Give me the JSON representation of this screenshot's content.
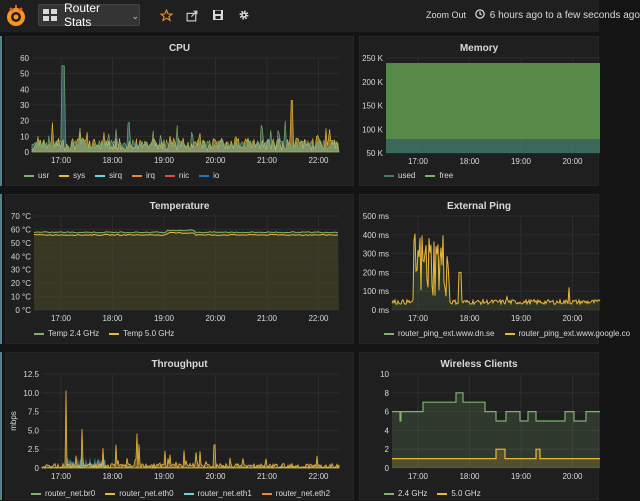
{
  "topbar": {
    "dashboard_title": "Router Stats",
    "caret": "⌄",
    "zoom_out": "Zoom Out",
    "time_range": "6 hours ago to a few seconds ago",
    "clock_icon": "clock-icon",
    "star_icon": "star-icon",
    "share_icon": "share-icon",
    "save_icon": "save-icon",
    "settings_icon": "gear-icon",
    "grid_icon": "grid-icon"
  },
  "panels": {
    "cpu": {
      "title": "CPU",
      "y_ticks": [
        "60",
        "50",
        "40",
        "30",
        "20",
        "10",
        "0"
      ],
      "x_ticks": [
        "17:00",
        "18:00",
        "19:00",
        "20:00",
        "21:00",
        "22:00"
      ],
      "legend": [
        {
          "label": "usr",
          "color": "#7eb26d"
        },
        {
          "label": "sys",
          "color": "#eab839"
        },
        {
          "label": "sirq",
          "color": "#6ed0e0"
        },
        {
          "label": "irq",
          "color": "#ef843c"
        },
        {
          "label": "nic",
          "color": "#e24d42"
        },
        {
          "label": "io",
          "color": "#1f78c1"
        }
      ]
    },
    "memory": {
      "title": "Memory",
      "y_ticks": [
        "250 K",
        "200 K",
        "150 K",
        "100 K",
        "50 K"
      ],
      "x_ticks": [
        "17:00",
        "18:00",
        "19:00",
        "20:00"
      ],
      "legend": [
        {
          "label": "used",
          "color": "#447a6c"
        },
        {
          "label": "free",
          "color": "#7eb26d"
        }
      ]
    },
    "temperature": {
      "title": "Temperature",
      "y_ticks": [
        "70 °C",
        "60 °C",
        "50 °C",
        "40 °C",
        "30 °C",
        "20 °C",
        "10 °C",
        "0 °C"
      ],
      "x_ticks": [
        "17:00",
        "18:00",
        "19:00",
        "20:00",
        "21:00",
        "22:00"
      ],
      "legend": [
        {
          "label": "Temp 2.4 GHz",
          "color": "#7eb26d"
        },
        {
          "label": "Temp 5.0 GHz",
          "color": "#eab839"
        }
      ]
    },
    "ping": {
      "title": "External Ping",
      "y_ticks": [
        "500 ms",
        "400 ms",
        "300 ms",
        "200 ms",
        "100 ms",
        "0 ms"
      ],
      "x_ticks": [
        "17:00",
        "18:00",
        "19:00",
        "20:00"
      ],
      "legend": [
        {
          "label": "router_ping_ext.www.dn.se",
          "color": "#7eb26d"
        },
        {
          "label": "router_ping_ext.www.google.co",
          "color": "#eab839"
        }
      ]
    },
    "throughput": {
      "title": "Throughput",
      "y_label": "mbps",
      "y_ticks": [
        "12.5",
        "10.0",
        "7.5",
        "5.0",
        "2.5",
        "0"
      ],
      "x_ticks": [
        "17:00",
        "18:00",
        "19:00",
        "20:00",
        "21:00",
        "22:00"
      ],
      "legend": [
        {
          "label": "router_net.br0",
          "color": "#7eb26d"
        },
        {
          "label": "router_net.eth0",
          "color": "#eab839"
        },
        {
          "label": "router_net.eth1",
          "color": "#6ed0e0"
        },
        {
          "label": "router_net.eth2",
          "color": "#ef843c"
        }
      ]
    },
    "wireless": {
      "title": "Wireless Clients",
      "y_ticks": [
        "10",
        "8",
        "6",
        "4",
        "2",
        "0"
      ],
      "x_ticks": [
        "17:00",
        "18:00",
        "19:00",
        "20:00"
      ],
      "legend": [
        {
          "label": "2.4 GHz",
          "color": "#7eb26d"
        },
        {
          "label": "5.0 GHz",
          "color": "#eab839"
        }
      ]
    }
  }
}
